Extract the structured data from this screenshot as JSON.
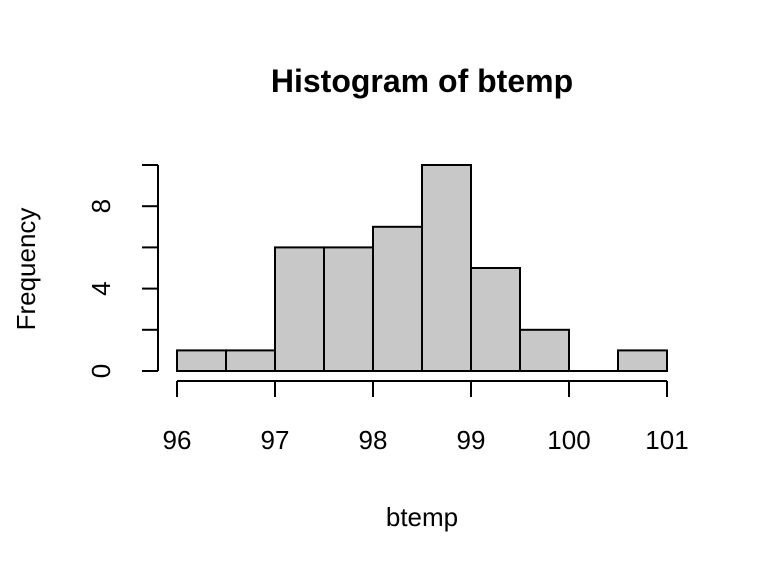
{
  "chart_data": {
    "type": "bar",
    "title": "Histogram of btemp",
    "xlabel": "btemp",
    "ylabel": "Frequency",
    "bins": [
      {
        "start": 96.0,
        "end": 96.5,
        "count": 1
      },
      {
        "start": 96.5,
        "end": 97.0,
        "count": 1
      },
      {
        "start": 97.0,
        "end": 97.5,
        "count": 6
      },
      {
        "start": 97.5,
        "end": 98.0,
        "count": 6
      },
      {
        "start": 98.0,
        "end": 98.5,
        "count": 7
      },
      {
        "start": 98.5,
        "end": 99.0,
        "count": 10
      },
      {
        "start": 99.0,
        "end": 99.5,
        "count": 5
      },
      {
        "start": 99.5,
        "end": 100.0,
        "count": 2
      },
      {
        "start": 100.0,
        "end": 100.5,
        "count": 0
      },
      {
        "start": 100.5,
        "end": 101.0,
        "count": 1
      }
    ],
    "xlim": [
      96,
      101
    ],
    "ylim": [
      0,
      10
    ],
    "x_ticks": [
      "96",
      "97",
      "98",
      "99",
      "100",
      "101"
    ],
    "y_ticks": [
      0,
      2,
      4,
      6,
      8,
      10
    ],
    "y_tick_labels": [
      "0",
      "",
      "4",
      "",
      "8",
      ""
    ],
    "grid": false,
    "colors": {
      "bar_fill": "#c8c8c8",
      "bar_stroke": "#000000"
    }
  }
}
